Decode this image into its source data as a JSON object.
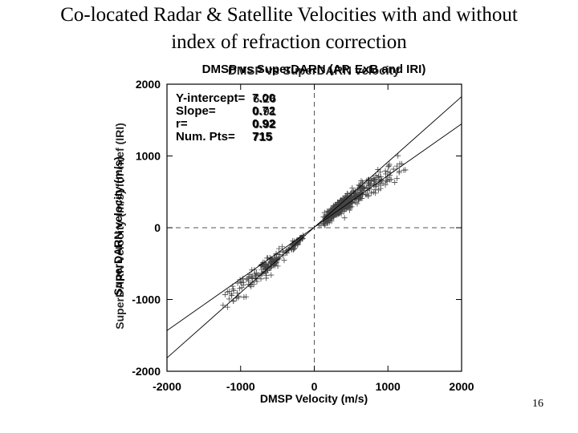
{
  "slide": {
    "title_line1": "Co-located Radar & Satellite Velocities with and without",
    "title_line2": "index of refraction correction",
    "page_number": "16"
  },
  "chart_data": {
    "type": "scatter",
    "title_a": "DMSP vs SuperDARN (AP, ExB and IRI)",
    "title_b": "DMSP vs SuperDARN velocity",
    "xlabel": "DMSP Velocity (m/s)",
    "ylabel_a": "SuperDARN velocity (m/s)",
    "ylabel_b": "SuperDARN velocity (m/s) for nref (IRI)",
    "xlim": [
      -2000,
      2000
    ],
    "ylim": [
      -2000,
      2000
    ],
    "xticks": [
      "-2000",
      "-1000",
      "0",
      "1000",
      "2000"
    ],
    "yticks": [
      "2000",
      "1000",
      "0",
      "-1000",
      "-2000"
    ],
    "stats_labels": [
      "Y-intercept=",
      "Slope=",
      "r=",
      "Num. Pts="
    ],
    "stats_a": [
      "7.00",
      "0.72",
      "0.92",
      "715"
    ],
    "stats_b": [
      "6.26",
      "0.91",
      "0.92",
      "715"
    ],
    "fit_lines": [
      {
        "intercept": 7.0,
        "slope": 0.72
      },
      {
        "intercept": 6.26,
        "slope": 0.91
      }
    ],
    "reference_lines": {
      "x": 0,
      "y": 0
    },
    "marker": "+",
    "clusters": [
      {
        "cx": 320,
        "cy": 260,
        "sx": 180,
        "sy": 120,
        "n": 360
      },
      {
        "cx": 600,
        "cy": 480,
        "sx": 260,
        "sy": 200,
        "n": 130
      },
      {
        "cx": 1000,
        "cy": 700,
        "sx": 260,
        "sy": 200,
        "n": 40
      },
      {
        "cx": -250,
        "cy": -220,
        "sx": 80,
        "sy": 70,
        "n": 50
      },
      {
        "cx": -600,
        "cy": -500,
        "sx": 180,
        "sy": 150,
        "n": 90
      },
      {
        "cx": -1000,
        "cy": -850,
        "sx": 250,
        "sy": 230,
        "n": 45
      }
    ]
  }
}
